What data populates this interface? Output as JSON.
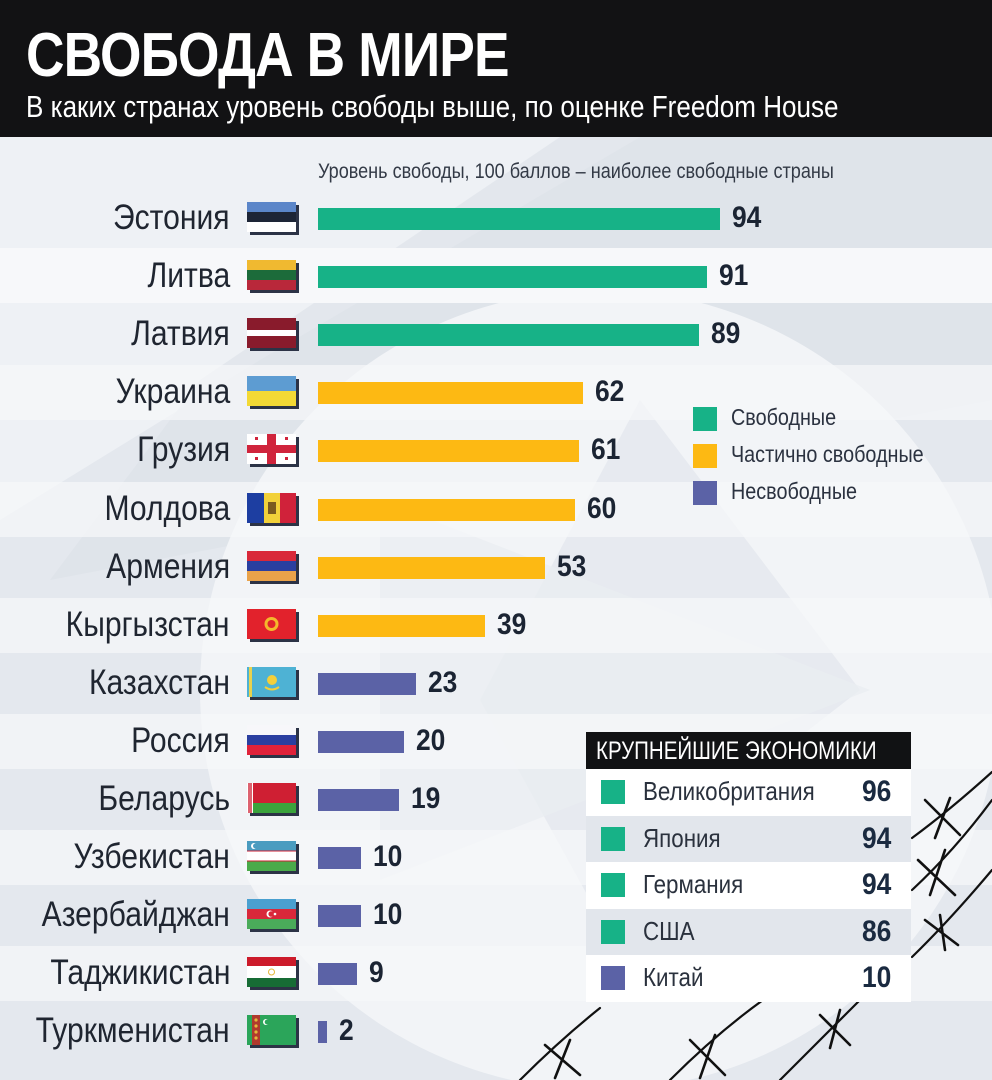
{
  "header": {
    "title": "СВОБОДА В МИРЕ",
    "subtitle": "В каких странах уровень свободы выше, по оценке Freedom House"
  },
  "axis_caption": "Уровень свободы, 100 баллов – наиболее свободные страны",
  "colors": {
    "free": "#17b287",
    "partly_free": "#fdb913",
    "not_free": "#5b62a6",
    "header_bg": "#121214",
    "background": "#e4e8ee"
  },
  "legend": {
    "items": [
      {
        "label": "Свободные",
        "color": "#17b287"
      },
      {
        "label": "Частично свободные",
        "color": "#fdb913"
      },
      {
        "label": "Несвободные",
        "color": "#5b62a6"
      }
    ]
  },
  "countries": [
    {
      "name": "Эстония",
      "value": "94",
      "status": "free",
      "flag": "estonia-flag"
    },
    {
      "name": "Литва",
      "value": "91",
      "status": "free",
      "flag": "lithuania-flag"
    },
    {
      "name": "Латвия",
      "value": "89",
      "status": "free",
      "flag": "latvia-flag"
    },
    {
      "name": "Украина",
      "value": "62",
      "status": "partly_free",
      "flag": "ukraine-flag"
    },
    {
      "name": "Грузия",
      "value": "61",
      "status": "partly_free",
      "flag": "georgia-flag"
    },
    {
      "name": "Молдова",
      "value": "60",
      "status": "partly_free",
      "flag": "moldova-flag"
    },
    {
      "name": "Армения",
      "value": "53",
      "status": "partly_free",
      "flag": "armenia-flag"
    },
    {
      "name": "Кыргызстан",
      "value": "39",
      "status": "partly_free",
      "flag": "kyrgyzstan-flag"
    },
    {
      "name": "Казахстан",
      "value": "23",
      "status": "not_free",
      "flag": "kazakhstan-flag"
    },
    {
      "name": "Россия",
      "value": "20",
      "status": "not_free",
      "flag": "russia-flag"
    },
    {
      "name": "Беларусь",
      "value": "19",
      "status": "not_free",
      "flag": "belarus-flag"
    },
    {
      "name": "Узбекистан",
      "value": "10",
      "status": "not_free",
      "flag": "uzbekistan-flag"
    },
    {
      "name": "Азербайджан",
      "value": "10",
      "status": "not_free",
      "flag": "azerbaijan-flag"
    },
    {
      "name": "Таджикистан",
      "value": "9",
      "status": "not_free",
      "flag": "tajikistan-flag"
    },
    {
      "name": "Туркменистан",
      "value": "2",
      "status": "not_free",
      "flag": "turkmenistan-flag"
    }
  ],
  "economies": {
    "title": "КРУПНЕЙШИЕ ЭКОНОМИКИ",
    "items": [
      {
        "name": "Великобритания",
        "value": "96",
        "status": "free"
      },
      {
        "name": "Япония",
        "value": "94",
        "status": "free"
      },
      {
        "name": "Германия",
        "value": "94",
        "status": "free"
      },
      {
        "name": "США",
        "value": "86",
        "status": "free"
      },
      {
        "name": "Китай",
        "value": "10",
        "status": "not_free"
      }
    ]
  },
  "chart_data": [
    {
      "type": "bar",
      "orientation": "horizontal",
      "title": "СВОБОДА В МИРЕ",
      "subtitle": "В каких странах уровень свободы выше, по оценке Freedom House",
      "xlabel": "Уровень свободы, 100 баллов – наиболее свободные страны",
      "ylabel": "",
      "xlim": [
        0,
        100
      ],
      "grid": false,
      "legend_position": "right",
      "categories": [
        "Эстония",
        "Литва",
        "Латвия",
        "Украина",
        "Грузия",
        "Молдова",
        "Армения",
        "Кыргызстан",
        "Казахстан",
        "Россия",
        "Беларусь",
        "Узбекистан",
        "Азербайджан",
        "Таджикистан",
        "Туркменистан"
      ],
      "values": [
        94,
        91,
        89,
        62,
        61,
        60,
        53,
        39,
        23,
        20,
        19,
        10,
        10,
        9,
        2
      ],
      "groups": [
        "Свободные",
        "Свободные",
        "Свободные",
        "Частично свободные",
        "Частично свободные",
        "Частично свободные",
        "Частично свободные",
        "Частично свободные",
        "Несвободные",
        "Несвободные",
        "Несвободные",
        "Несвободные",
        "Несвободные",
        "Несвободные",
        "Несвободные"
      ],
      "legend": [
        "Свободные",
        "Частично свободные",
        "Несвободные"
      ]
    },
    {
      "type": "table",
      "title": "КРУПНЕЙШИЕ ЭКОНОМИКИ",
      "categories": [
        "Великобритания",
        "Япония",
        "Германия",
        "США",
        "Китай"
      ],
      "values": [
        96,
        94,
        94,
        86,
        10
      ],
      "groups": [
        "Свободные",
        "Свободные",
        "Свободные",
        "Свободные",
        "Несвободные"
      ]
    }
  ]
}
